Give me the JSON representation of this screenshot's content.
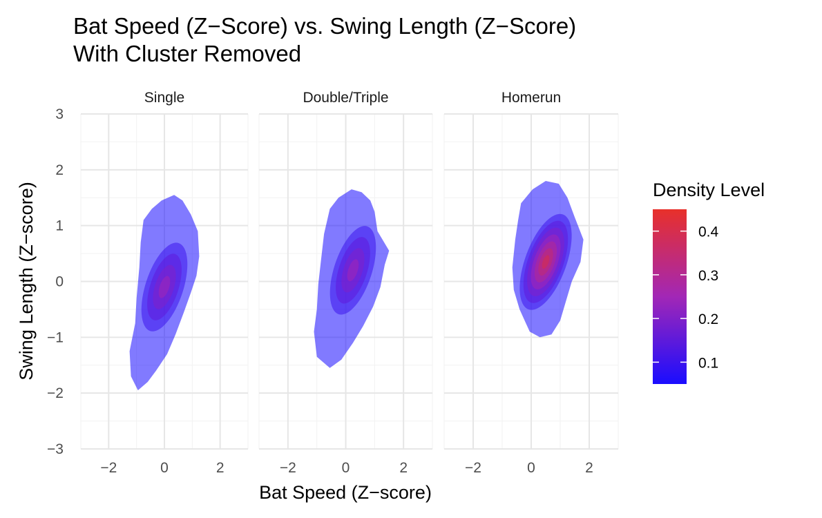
{
  "chart_data": {
    "type": "density",
    "title_lines": [
      "Bat Speed (Z−Score) vs. Swing Length (Z−Score)",
      "With Cluster Removed"
    ],
    "xlabel": "Bat Speed (Z−score)",
    "ylabel": "Swing Length (Z−score)",
    "xlim": [
      -3,
      3
    ],
    "ylim": [
      -3,
      3
    ],
    "x_ticks": [
      -2,
      0,
      2
    ],
    "x_tick_labels": [
      "−2",
      "0",
      "2"
    ],
    "y_ticks": [
      -3,
      -2,
      -1,
      0,
      1,
      2,
      3
    ],
    "y_tick_labels": [
      "−3",
      "−2",
      "−1",
      "0",
      "1",
      "2",
      "3"
    ],
    "grid": true,
    "legend": {
      "title": "Density Level",
      "placement": "right",
      "range": [
        0.05,
        0.45
      ],
      "ticks": [
        0.1,
        0.2,
        0.3,
        0.4
      ],
      "tick_labels": [
        "0.1",
        "0.2",
        "0.3",
        "0.4"
      ],
      "colors": {
        "low": "#1a0dff",
        "high": "#e8302a"
      }
    },
    "facets": [
      {
        "name": "Single",
        "peak_density": 0.25,
        "outer_contour": [
          [
            -0.75,
            1.1
          ],
          [
            -0.45,
            1.3
          ],
          [
            -0.1,
            1.45
          ],
          [
            0.35,
            1.55
          ],
          [
            0.65,
            1.45
          ],
          [
            0.95,
            1.2
          ],
          [
            1.2,
            0.9
          ],
          [
            1.25,
            0.45
          ],
          [
            1.15,
            0.1
          ],
          [
            0.95,
            -0.2
          ],
          [
            0.7,
            -0.55
          ],
          [
            0.4,
            -0.95
          ],
          [
            0.1,
            -1.3
          ],
          [
            -0.3,
            -1.6
          ],
          [
            -0.6,
            -1.8
          ],
          [
            -0.95,
            -1.95
          ],
          [
            -1.2,
            -1.7
          ],
          [
            -1.25,
            -1.25
          ],
          [
            -1.05,
            -0.75
          ],
          [
            -1.0,
            -0.3
          ],
          [
            -0.9,
            0.25
          ],
          [
            -0.85,
            0.7
          ]
        ],
        "center": [
          0.0,
          -0.1
        ],
        "orientation_deg": 72
      },
      {
        "name": "Double/Triple",
        "peak_density": 0.25,
        "outer_contour": [
          [
            -0.55,
            1.3
          ],
          [
            -0.25,
            1.5
          ],
          [
            0.2,
            1.65
          ],
          [
            0.55,
            1.6
          ],
          [
            0.85,
            1.45
          ],
          [
            1.0,
            1.25
          ],
          [
            1.1,
            0.9
          ],
          [
            1.5,
            0.55
          ],
          [
            1.35,
            0.3
          ],
          [
            1.2,
            -0.1
          ],
          [
            0.95,
            -0.45
          ],
          [
            0.6,
            -0.8
          ],
          [
            0.25,
            -1.1
          ],
          [
            -0.15,
            -1.4
          ],
          [
            -0.55,
            -1.55
          ],
          [
            -1.0,
            -1.35
          ],
          [
            -1.1,
            -0.9
          ],
          [
            -1.0,
            -0.5
          ],
          [
            -0.95,
            -0.05
          ],
          [
            -0.85,
            0.4
          ],
          [
            -0.75,
            0.85
          ]
        ],
        "center": [
          0.25,
          0.2
        ],
        "orientation_deg": 72
      },
      {
        "name": "Homerun",
        "peak_density": 0.4,
        "outer_contour": [
          [
            -0.35,
            1.4
          ],
          [
            0.05,
            1.65
          ],
          [
            0.5,
            1.8
          ],
          [
            0.95,
            1.75
          ],
          [
            1.25,
            1.5
          ],
          [
            1.5,
            1.15
          ],
          [
            1.8,
            0.75
          ],
          [
            1.7,
            0.35
          ],
          [
            1.4,
            0.0
          ],
          [
            1.2,
            -0.35
          ],
          [
            1.0,
            -0.7
          ],
          [
            0.7,
            -0.95
          ],
          [
            0.3,
            -1.0
          ],
          [
            -0.05,
            -0.9
          ],
          [
            -0.4,
            -0.5
          ],
          [
            -0.6,
            -0.15
          ],
          [
            -0.65,
            0.25
          ],
          [
            -0.55,
            0.75
          ],
          [
            -0.45,
            1.1
          ]
        ],
        "center": [
          0.5,
          0.35
        ],
        "orientation_deg": 70
      }
    ]
  }
}
